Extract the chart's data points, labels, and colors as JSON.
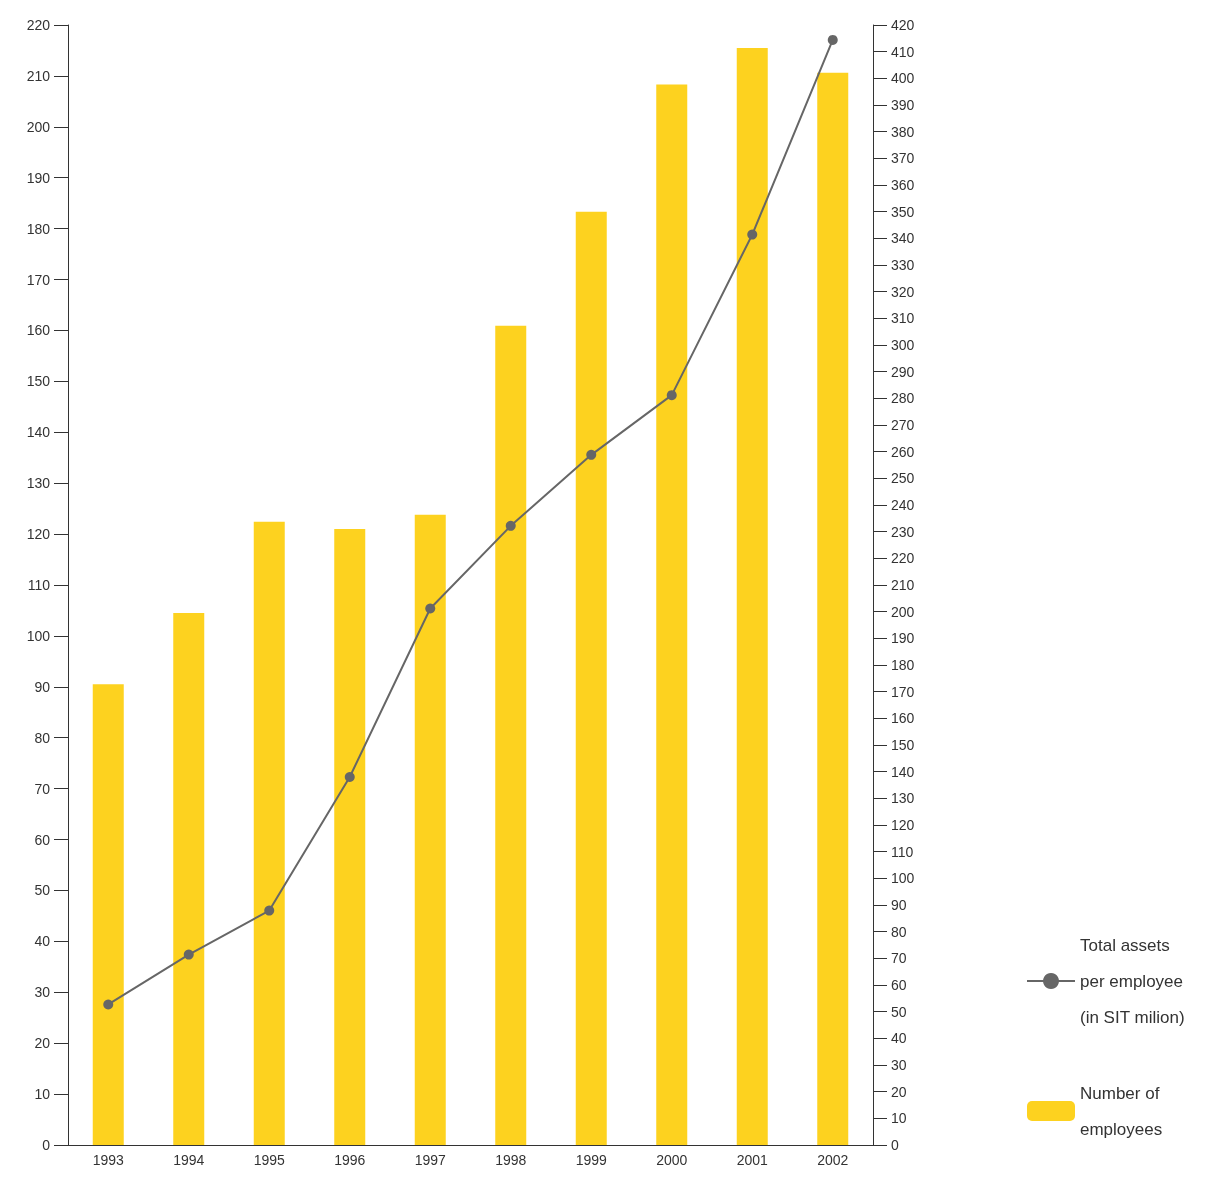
{
  "chart_data": {
    "type": "bar",
    "categories": [
      "1993",
      "1994",
      "1995",
      "1996",
      "1997",
      "1998",
      "1999",
      "2000",
      "2001",
      "2002"
    ],
    "series": [
      {
        "name": "Total assets per employee (in SIT milion)",
        "type": "line",
        "axis": "y2",
        "color": "#666666",
        "values": [
          52.7,
          71.4,
          87.9,
          138,
          201.2,
          232.2,
          258.8,
          281.2,
          341.4,
          414.4
        ]
      },
      {
        "name": "Number of employees",
        "color": "#fdd21f",
        "values": [
          90.5,
          104.5,
          122.4,
          121,
          123.8,
          160.9,
          183.3,
          208.3,
          215.5,
          210.6
        ]
      }
    ],
    "ylim": [
      0,
      220
    ],
    "yticks": [
      0,
      10,
      20,
      30,
      40,
      50,
      60,
      70,
      80,
      90,
      100,
      110,
      120,
      130,
      140,
      150,
      160,
      170,
      180,
      190,
      200,
      210,
      220
    ],
    "y2lim": [
      0,
      420
    ],
    "y2ticks": [
      0,
      10,
      20,
      30,
      40,
      50,
      60,
      70,
      80,
      90,
      100,
      110,
      120,
      130,
      140,
      150,
      160,
      170,
      180,
      190,
      200,
      210,
      220,
      230,
      240,
      250,
      260,
      270,
      280,
      290,
      300,
      310,
      320,
      330,
      340,
      350,
      360,
      370,
      380,
      390,
      400,
      410,
      420
    ],
    "marker": "circle",
    "line_style": "solid",
    "grid": false,
    "legend": "bottom right"
  }
}
